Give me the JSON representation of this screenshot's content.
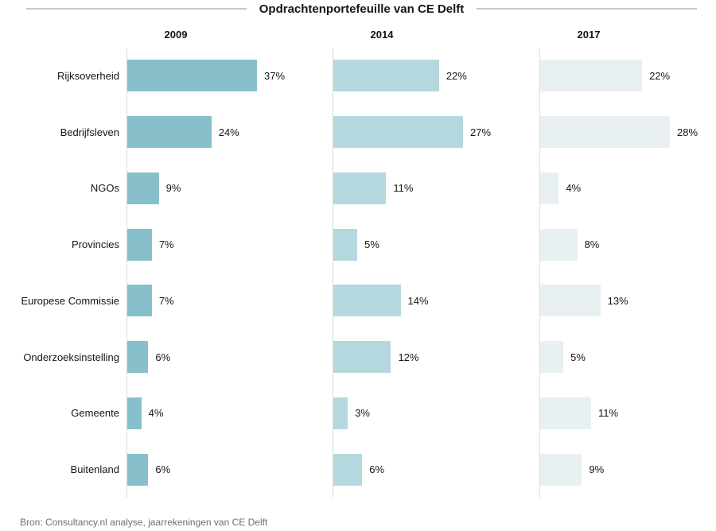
{
  "title": "Opdrachtenportefeuille van CE Delft",
  "source": "Bron: Consultancy.nl analyse, jaarrekeningen van CE Delft",
  "colors": {
    "series_2009": "#87c0ca",
    "series_2014": "#b5d8de",
    "series_2017": "#e8f0f1",
    "axis_line": "#dcdcdc",
    "title_rule": "#c8c8c8",
    "text": "#151515",
    "source_text": "#6f6f6f"
  },
  "chart_data": {
    "type": "bar",
    "orientation": "horizontal",
    "title": "Opdrachtenportefeuille van CE Delft",
    "categories": [
      "Rijksoverheid",
      "Bedrijfsleven",
      "NGOs",
      "Provincies",
      "Europese Commissie",
      "Onderzoeksinstelling",
      "Gemeente",
      "Buitenland"
    ],
    "series": [
      {
        "name": "2009",
        "color": "#87c0ca",
        "values": [
          37,
          24,
          9,
          7,
          7,
          6,
          4,
          6
        ]
      },
      {
        "name": "2014",
        "color": "#b5d8de",
        "values": [
          22,
          27,
          11,
          5,
          14,
          12,
          3,
          6
        ]
      },
      {
        "name": "2017",
        "color": "#e8f0f1",
        "values": [
          22,
          28,
          4,
          8,
          13,
          5,
          11,
          9
        ]
      }
    ],
    "value_suffix": "%",
    "value_labels": "outside-end",
    "scaling": "each column normalized to its own max value",
    "grid": false,
    "legend_position": "column-headers-top"
  }
}
